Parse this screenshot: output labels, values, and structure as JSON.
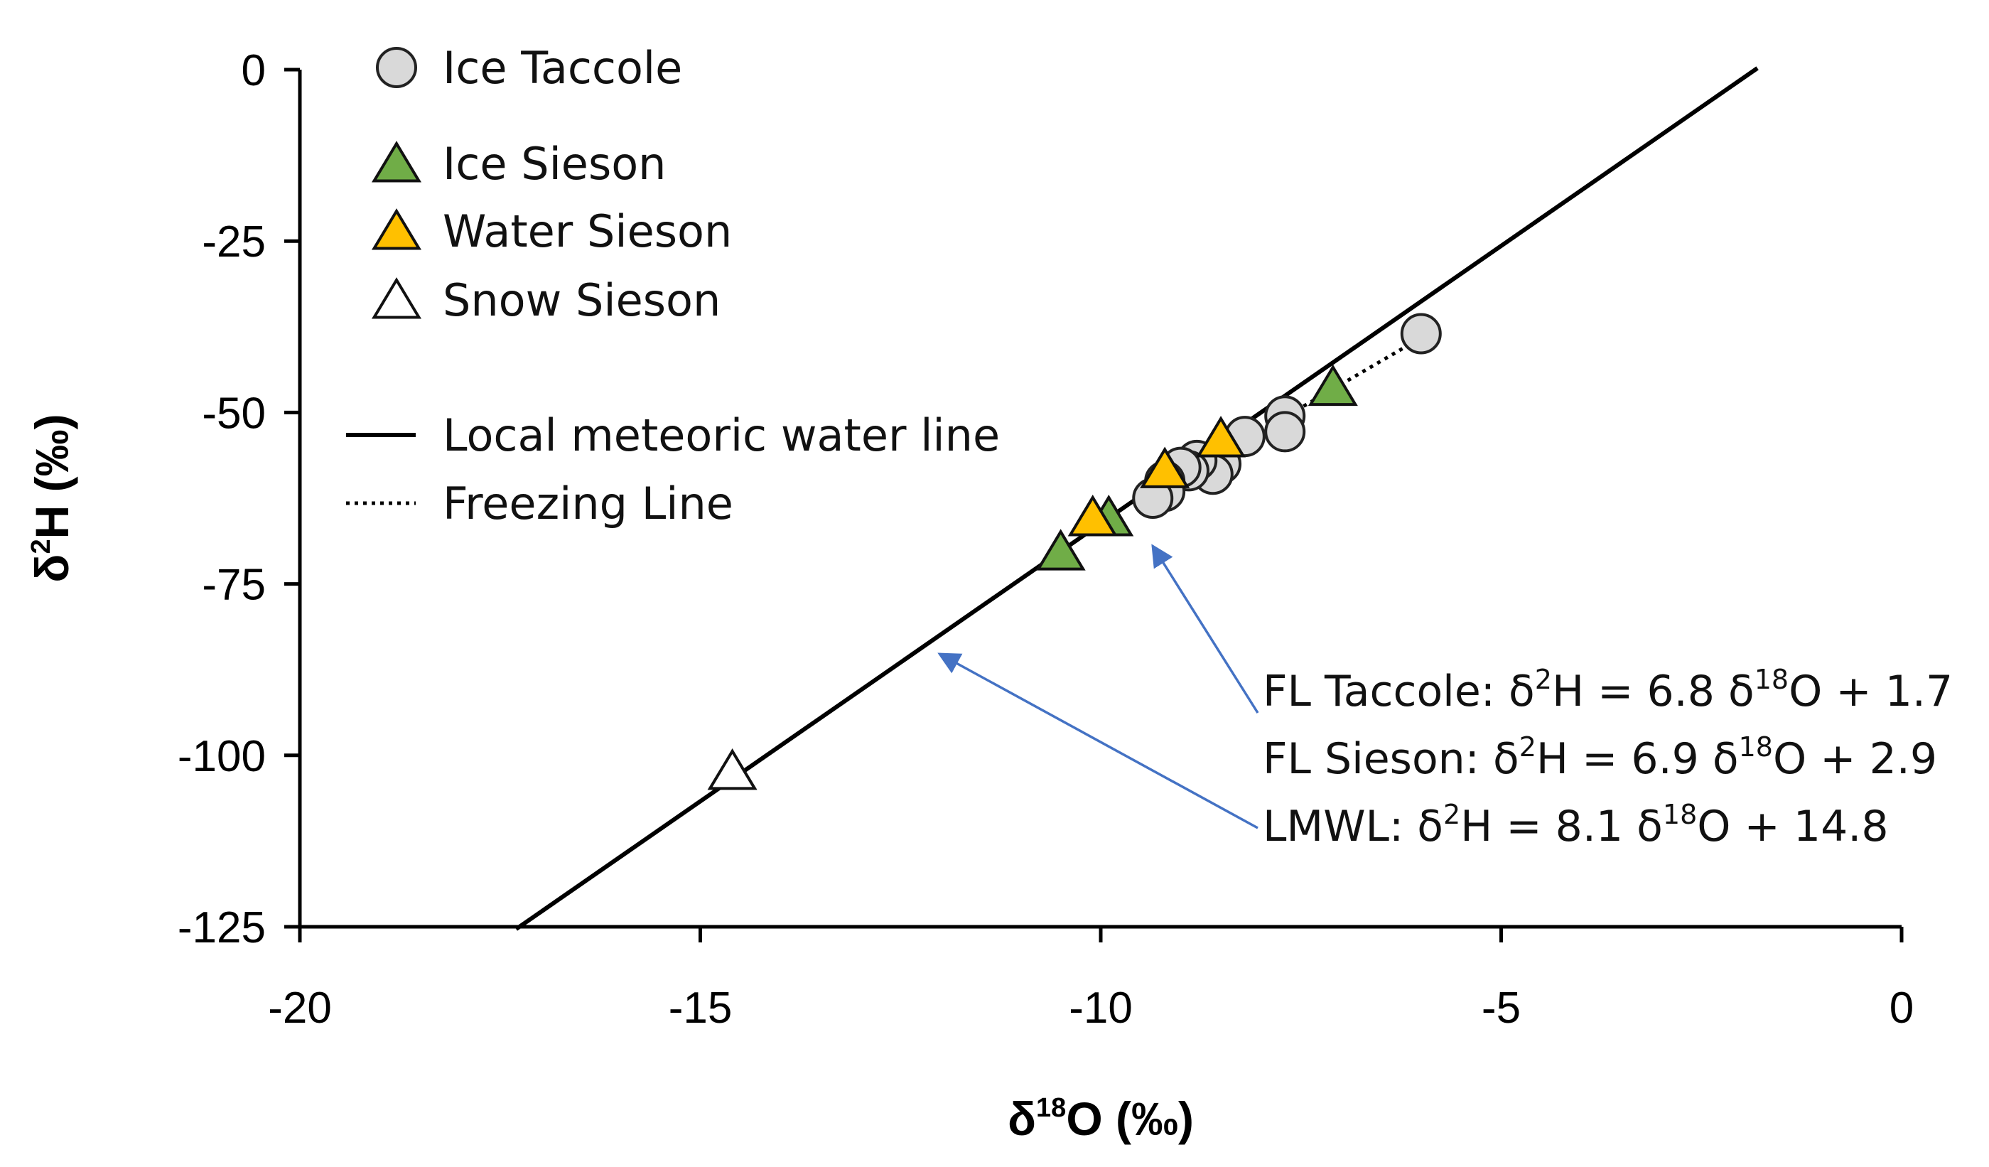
{
  "chart_data": {
    "type": "scatter",
    "xlabel": {
      "prefix": "δ",
      "sup": "18",
      "main": "O (‰)"
    },
    "ylabel": {
      "prefix": "δ",
      "sup": "2",
      "main": "H (‰)"
    },
    "xlim": [
      -20,
      0
    ],
    "ylim": [
      -125,
      0
    ],
    "xticks": [
      -20,
      -15,
      -10,
      -5,
      0
    ],
    "yticks": [
      0,
      -25,
      -50,
      -75,
      -100,
      -125
    ],
    "colors": {
      "ice_taccole": "#d9d9d9",
      "ice_sieson": "#70ad47",
      "water_sieson": "#ffc000",
      "snow_sieson": "#ffffff"
    },
    "legend": [
      {
        "label": "Ice Taccole",
        "marker": "circle",
        "color_key": "ice_taccole"
      },
      {
        "label": "Ice Sieson",
        "marker": "triangle",
        "color_key": "ice_sieson"
      },
      {
        "label": "Water Sieson",
        "marker": "triangle",
        "color_key": "water_sieson"
      },
      {
        "label": "Snow Sieson",
        "marker": "triangle",
        "color_key": "snow_sieson"
      },
      {
        "label": "Local meteoric water line",
        "marker": "solid-line"
      },
      {
        "label": "Freezing Line",
        "marker": "dotted-line"
      }
    ],
    "series": [
      {
        "name": "Ice Taccole",
        "marker": "circle",
        "color_key": "ice_taccole",
        "points": [
          {
            "x": -6.0,
            "y": -38.5
          },
          {
            "x": -7.7,
            "y": -50.5
          },
          {
            "x": -7.7,
            "y": -52.8
          },
          {
            "x": -8.2,
            "y": -53.5
          },
          {
            "x": -8.5,
            "y": -57.5
          },
          {
            "x": -8.6,
            "y": -59.0
          },
          {
            "x": -8.8,
            "y": -57.0
          },
          {
            "x": -8.9,
            "y": -58.5
          },
          {
            "x": -9.0,
            "y": -58.0
          },
          {
            "x": -9.2,
            "y": -60.0
          },
          {
            "x": -9.2,
            "y": -61.5
          },
          {
            "x": -9.35,
            "y": -62.5
          }
        ]
      },
      {
        "name": "Ice Sieson",
        "marker": "triangle",
        "color_key": "ice_sieson",
        "points": [
          {
            "x": -7.1,
            "y": -46.5
          },
          {
            "x": -9.9,
            "y": -65.5
          },
          {
            "x": -10.5,
            "y": -70.5
          }
        ]
      },
      {
        "name": "Water Sieson",
        "marker": "triangle",
        "color_key": "water_sieson",
        "points": [
          {
            "x": -8.5,
            "y": -54.0
          },
          {
            "x": -9.2,
            "y": -58.5
          },
          {
            "x": -10.1,
            "y": -65.5
          }
        ]
      },
      {
        "name": "Snow Sieson",
        "marker": "triangle",
        "color_key": "snow_sieson",
        "points": [
          {
            "x": -14.6,
            "y": -102.5
          }
        ]
      }
    ],
    "lines": [
      {
        "name": "Local meteoric water line",
        "style": "solid",
        "slope": 8.1,
        "intercept": 14.8,
        "x_range": [
          -17.3,
          -1.8
        ]
      },
      {
        "name": "Freezing Line",
        "style": "dotted",
        "slope": 6.8,
        "intercept": 1.7,
        "x_range": [
          -9.4,
          -6.0
        ]
      }
    ],
    "equations": [
      {
        "name": "FL Taccole",
        "label": "FL Taccole: δ",
        "sup1": "2",
        "mid": "H = 6.8 δ",
        "sup2": "18",
        "tail": "O + 1.7"
      },
      {
        "name": "FL Sieson",
        "label": "FL Sieson: δ",
        "sup1": "2",
        "mid": "H = 6.9 δ",
        "sup2": "18",
        "tail": "O + 2.9"
      },
      {
        "name": "LMWL",
        "label": "LMWL: δ",
        "sup1": "2",
        "mid": "H = 8.1 δ",
        "sup2": "18",
        "tail": "O + 14.8"
      }
    ],
    "annotation_arrow_color": "#4472c4"
  }
}
